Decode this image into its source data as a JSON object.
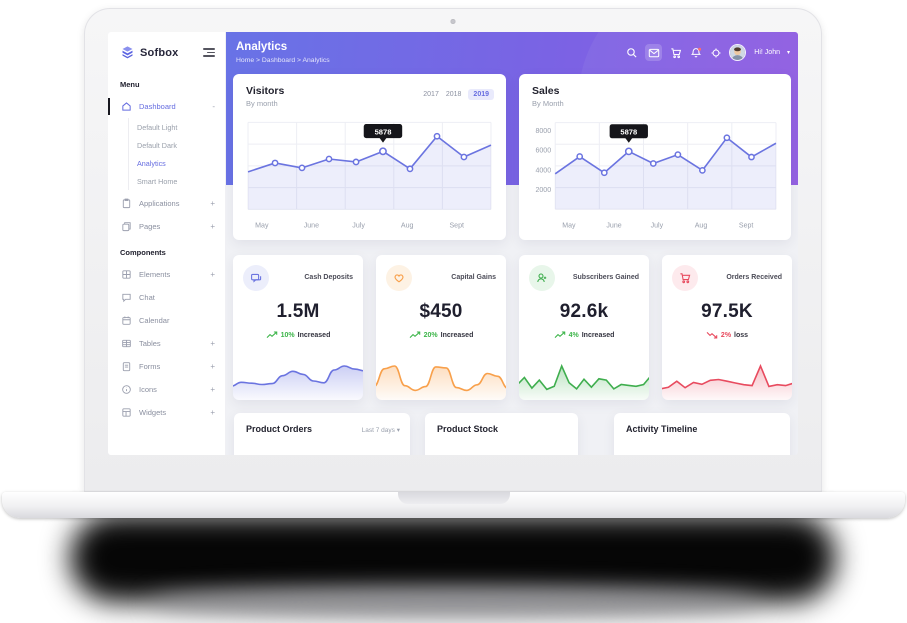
{
  "header": {
    "title": "Analytics",
    "breadcrumb": "Home > Dashboard > Analytics",
    "greeting": "Hi! John"
  },
  "sidebar": {
    "logo_text": "Sofbox",
    "menu_label": "Menu",
    "components_label": "Components",
    "dashboard": {
      "label": "Dashboard",
      "expand": "-"
    },
    "dashboard_sub": [
      {
        "label": "Default Light"
      },
      {
        "label": "Default Dark"
      },
      {
        "label": "Analytics"
      },
      {
        "label": "Smart Home"
      }
    ],
    "menu_items": [
      {
        "label": "Applications",
        "expand": "+"
      },
      {
        "label": "Pages",
        "expand": "+"
      }
    ],
    "component_items": [
      {
        "label": "Elements",
        "expand": "+"
      },
      {
        "label": "Chat",
        "expand": ""
      },
      {
        "label": "Calendar",
        "expand": ""
      },
      {
        "label": "Tables",
        "expand": "+"
      },
      {
        "label": "Forms",
        "expand": "+"
      },
      {
        "label": "Icons",
        "expand": "+"
      },
      {
        "label": "Widgets",
        "expand": "+"
      }
    ]
  },
  "chart_data": [
    {
      "type": "line",
      "title": "Visitors",
      "subtitle": "By month",
      "years": [
        "2017",
        "2018",
        "2019"
      ],
      "active_year": "2019",
      "x_labels": [
        "May",
        "June",
        "July",
        "Aug",
        "Sept"
      ],
      "values": [
        3800,
        4700,
        4200,
        5100,
        4800,
        5878,
        4100,
        7400,
        5300,
        6500
      ],
      "tooltip": {
        "index": 5,
        "label": "5878"
      },
      "ylim": [
        0,
        8800
      ],
      "grid": true,
      "line_color": "#6b74e0"
    },
    {
      "type": "line",
      "title": "Sales",
      "subtitle": "By Month",
      "x_labels": [
        "May",
        "June",
        "July",
        "Aug",
        "Sept"
      ],
      "yticks": [
        "8000",
        "6000",
        "4000",
        "2000"
      ],
      "values": [
        3600,
        5350,
        3700,
        5878,
        4650,
        5550,
        3950,
        7250,
        5300,
        6700
      ],
      "tooltip": {
        "index": 3,
        "label": "5878"
      },
      "ylim": [
        0,
        8800
      ],
      "grid": true,
      "line_color": "#6b74e0"
    }
  ],
  "stats": [
    {
      "title": "Cash Deposits",
      "value": "1.5M",
      "delta": "10%",
      "delta_label": "Increased",
      "trend": "up",
      "color": "#6b74e0",
      "icon_bg": "#eceefb",
      "delta_color": "#3db54a",
      "spark": [
        2.2,
        3.1,
        2.9,
        2.6,
        2.8,
        4.6,
        5.6,
        4.9,
        3.4,
        3.0,
        5.9,
        6.8,
        6.1,
        5.7
      ],
      "smooth": true
    },
    {
      "title": "Capital Gains",
      "value": "$450",
      "delta": "20%",
      "delta_label": "Increased",
      "trend": "up",
      "color": "#f8a04b",
      "icon_bg": "#fdf2e4",
      "delta_color": "#3db54a",
      "spark": [
        2.0,
        5.8,
        6.4,
        2.2,
        1.2,
        2.0,
        6.2,
        6.0,
        1.8,
        1.2,
        2.4,
        4.8,
        4.2,
        1.6
      ],
      "smooth": true
    },
    {
      "title": "Subscribers Gained",
      "value": "92.6k",
      "delta": "4%",
      "delta_label": "Increased",
      "trend": "up",
      "color": "#3fae4e",
      "icon_bg": "#e8f6ea",
      "delta_color": "#3db54a",
      "spark": [
        2.5,
        4.2,
        1.8,
        3.6,
        1.5,
        2.2,
        6.8,
        3.0,
        1.6,
        3.8,
        2.0,
        3.9,
        3.6,
        1.6,
        2.6,
        2.4,
        2.2,
        2.6,
        4.6
      ],
      "smooth": false
    },
    {
      "title": "Orders Received",
      "value": "97.5K",
      "delta": "2%",
      "delta_label": "loss",
      "trend": "down",
      "color": "#e84b5f",
      "icon_bg": "#fdeaed",
      "delta_color": "#e8485c",
      "spark": [
        1.6,
        2.0,
        3.4,
        1.9,
        3.1,
        2.7,
        3.6,
        3.8,
        3.4,
        3.0,
        2.6,
        2.4,
        6.9,
        2.2,
        2.6,
        2.4,
        3.0
      ],
      "smooth": false
    }
  ],
  "bottom": {
    "cards": [
      {
        "title": "Product Orders",
        "filter": "Last 7 days"
      },
      {
        "title": "Product Stock",
        "filter": ""
      },
      {
        "title": "Activity Timeline",
        "filter": ""
      }
    ]
  }
}
